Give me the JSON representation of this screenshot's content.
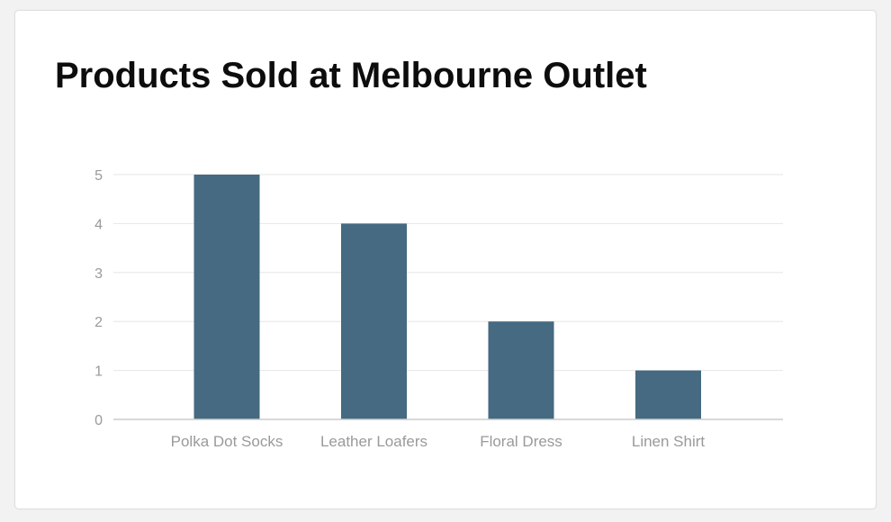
{
  "title": "Products Sold at Melbourne Outlet",
  "colors": {
    "bar": "#456a81",
    "grid": "#e6e6e6",
    "axis": "#cccccc",
    "label": "#9a9a9a"
  },
  "chart_data": {
    "type": "bar",
    "title": "Products Sold at Melbourne Outlet",
    "categories": [
      "Polka Dot Socks",
      "Leather Loafers",
      "Floral Dress",
      "Linen Shirt"
    ],
    "values": [
      5,
      4,
      2,
      1
    ],
    "yticks": [
      0,
      1,
      2,
      3,
      4,
      5
    ],
    "ylim": [
      0,
      5
    ],
    "xlabel": "",
    "ylabel": "",
    "grid": true,
    "legend": "none"
  }
}
